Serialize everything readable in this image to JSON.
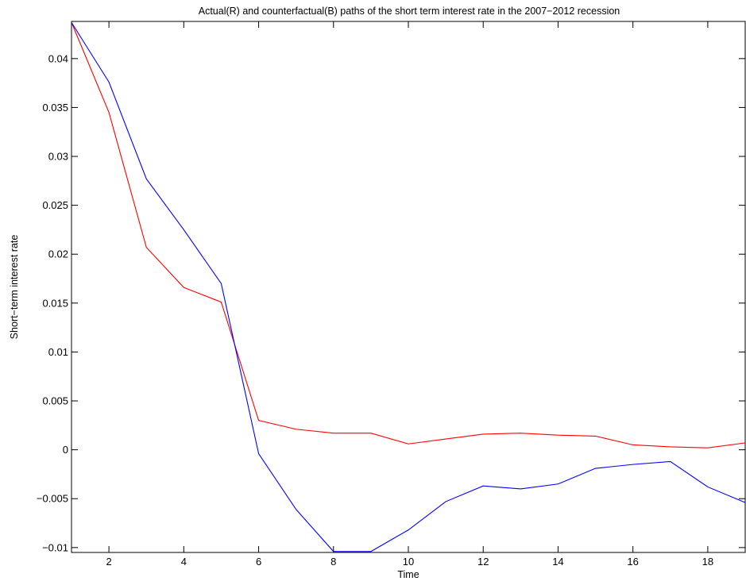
{
  "chart_data": {
    "type": "line",
    "title": "Actual(R) and counterfactual(B) paths of the short term interest rate in the 2007−2012 recession",
    "xlabel": "Time",
    "ylabel": "Short−term interest rate",
    "xlim": [
      1,
      19
    ],
    "ylim": [
      -0.0105,
      0.0438
    ],
    "xticks": [
      2,
      4,
      6,
      8,
      10,
      12,
      14,
      16,
      18
    ],
    "xtick_labels": [
      "2",
      "4",
      "6",
      "8",
      "10",
      "12",
      "14",
      "16",
      "18"
    ],
    "yticks": [
      -0.01,
      -0.005,
      0,
      0.005,
      0.01,
      0.015,
      0.02,
      0.025,
      0.03,
      0.035,
      0.04
    ],
    "ytick_labels": [
      "−0.01",
      "−0.005",
      "0",
      "0.005",
      "0.01",
      "0.015",
      "0.02",
      "0.025",
      "0.03",
      "0.035",
      "0.04"
    ],
    "grid": false,
    "x": [
      1,
      2,
      3,
      4,
      5,
      6,
      7,
      8,
      9,
      10,
      11,
      12,
      13,
      14,
      15,
      16,
      17,
      18,
      19
    ],
    "series": [
      {
        "color": "#ff0000",
        "values": [
          0.0437,
          0.0345,
          0.0207,
          0.0166,
          0.0151,
          0.003,
          0.0021,
          0.0017,
          0.0017,
          0.0006,
          0.0011,
          0.0016,
          0.0017,
          0.0015,
          0.0014,
          0.0005,
          0.0003,
          0.0002,
          0.0007
        ]
      },
      {
        "color": "#0000ff",
        "values": [
          0.0437,
          0.0376,
          0.0277,
          0.0225,
          0.017,
          -0.0004,
          -0.0061,
          -0.0104,
          -0.0104,
          -0.0082,
          -0.0053,
          -0.0037,
          -0.004,
          -0.0035,
          -0.0019,
          -0.0015,
          -0.0012,
          -0.0038,
          -0.0054
        ]
      }
    ]
  }
}
